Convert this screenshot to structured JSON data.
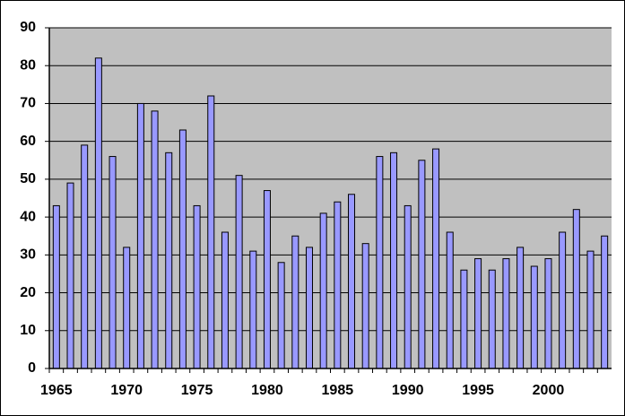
{
  "chart_data": {
    "type": "bar",
    "categories": [
      "1965",
      null,
      null,
      null,
      null,
      "1970",
      null,
      null,
      null,
      null,
      "1975",
      null,
      null,
      null,
      null,
      "1980",
      null,
      null,
      null,
      null,
      "1985",
      null,
      null,
      null,
      null,
      "1990",
      null,
      null,
      null,
      null,
      "1995",
      null,
      null,
      null,
      null,
      "2000",
      null,
      null,
      null,
      null
    ],
    "values": [
      43,
      49,
      59,
      82,
      56,
      32,
      70,
      68,
      57,
      63,
      43,
      72,
      36,
      51,
      31,
      47,
      28,
      35,
      32,
      41,
      44,
      46,
      33,
      56,
      57,
      43,
      55,
      58,
      36,
      26,
      29,
      26,
      29,
      32,
      27,
      29,
      36,
      42,
      31,
      35
    ],
    "color": "#9999ff",
    "ylim": [
      0,
      90
    ],
    "yticks": [
      0,
      10,
      20,
      30,
      40,
      50,
      60,
      70,
      80,
      90
    ],
    "grid": true
  }
}
